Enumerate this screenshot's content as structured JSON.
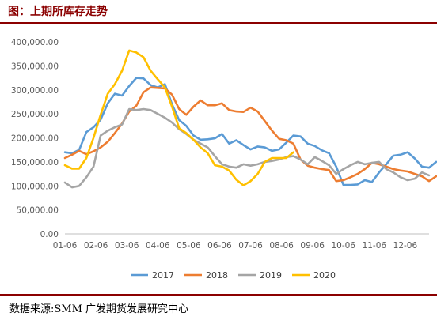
{
  "title": "图：上期所库存走势",
  "source": "数据来源:SMM  广发期货发展研究中心",
  "chart_data": {
    "type": "line",
    "title": "",
    "xlabel": "",
    "ylabel": "",
    "ylim": [
      0,
      400000
    ],
    "yticks": [
      "0.00",
      "50,000.00",
      "100,000.00",
      "150,000.00",
      "200,000.00",
      "250,000.00",
      "300,000.00",
      "350,000.00",
      "400,000.00"
    ],
    "xticks": [
      "01-06",
      "02-06",
      "03-06",
      "04-06",
      "05-06",
      "06-06",
      "07-06",
      "08-06",
      "09-06",
      "10-06",
      "11-06",
      "12-06"
    ],
    "x_range": [
      0,
      51
    ],
    "grid": false,
    "legend": "bottom",
    "series": [
      {
        "name": "2017",
        "color": "#5B9BD5",
        "values": [
          170000,
          168000,
          175000,
          212000,
          222000,
          238000,
          272000,
          292000,
          288000,
          308000,
          325000,
          324000,
          310000,
          305000,
          312000,
          270000,
          237000,
          225000,
          205000,
          196000,
          197000,
          199000,
          208000,
          188000,
          195000,
          185000,
          176000,
          182000,
          180000,
          173000,
          176000,
          190000,
          205000,
          203000,
          188000,
          183000,
          174000,
          168000,
          140000,
          102000,
          102000,
          103000,
          112000,
          108000,
          128000,
          145000,
          163000,
          165000,
          170000,
          157000,
          140000,
          138000,
          150000
        ]
      },
      {
        "name": "2018",
        "color": "#ED7D31",
        "values": [
          158000,
          165000,
          173000,
          166000,
          172000,
          180000,
          192000,
          210000,
          230000,
          255000,
          267000,
          295000,
          305000,
          304000,
          303000,
          290000,
          260000,
          248000,
          265000,
          278000,
          268000,
          268000,
          272000,
          258000,
          255000,
          254000,
          263000,
          255000,
          235000,
          215000,
          198000,
          195000,
          188000,
          155000,
          142000,
          138000,
          135000,
          133000,
          110000,
          112000,
          118000,
          125000,
          135000,
          148000,
          145000,
          140000,
          135000,
          132000,
          130000,
          125000,
          120000,
          110000,
          120000
        ]
      },
      {
        "name": "2019",
        "color": "#A5A5A5",
        "values": [
          107000,
          97000,
          100000,
          118000,
          140000,
          205000,
          215000,
          222000,
          228000,
          260000,
          258000,
          260000,
          258000,
          250000,
          242000,
          232000,
          218000,
          208000,
          196000,
          188000,
          180000,
          162000,
          145000,
          140000,
          138000,
          145000,
          142000,
          145000,
          150000,
          152000,
          155000,
          160000,
          162000,
          155000,
          145000,
          160000,
          152000,
          143000,
          125000,
          135000,
          143000,
          150000,
          145000,
          148000,
          150000,
          135000,
          128000,
          118000,
          112000,
          115000,
          128000,
          122000
        ]
      },
      {
        "name": "2020",
        "color": "#FFC000",
        "values": [
          143000,
          136000,
          136000,
          158000,
          200000,
          248000,
          292000,
          312000,
          340000,
          382000,
          378000,
          368000,
          340000,
          322000,
          305000,
          265000,
          220000,
          210000,
          196000,
          180000,
          168000,
          143000,
          140000,
          132000,
          113000,
          101000,
          110000,
          125000,
          150000,
          158000,
          158000,
          158000,
          170000
        ]
      }
    ]
  }
}
